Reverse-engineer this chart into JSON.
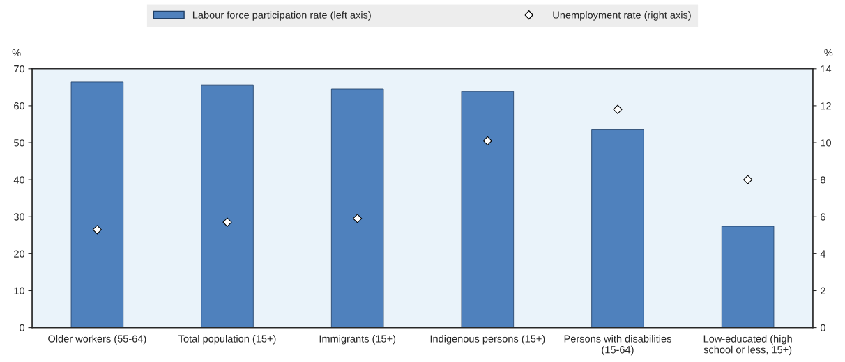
{
  "chart_data": {
    "type": "bar",
    "categories": [
      "Older workers (55-64)",
      "Total population (15+)",
      "Immigrants (15+)",
      "Indigenous persons (15+)",
      "Persons with disabilities\n(15-64)",
      "Low-educated (high\nschool or less, 15+)"
    ],
    "series": [
      {
        "name": "Labour force participation rate (left axis)",
        "color": "#4f81bd",
        "values": [
          66.4,
          65.6,
          64.5,
          63.9,
          53.5,
          27.4
        ]
      },
      {
        "name": "Unemployment rate (right axis)",
        "type": "scatter",
        "axis": "y2",
        "color": "#ffffff",
        "marker": "diamond",
        "values": [
          5.3,
          5.7,
          5.9,
          10.1,
          11.8,
          8.0
        ]
      }
    ],
    "ylabel": "%",
    "y2label": "%",
    "ylim": [
      0,
      70
    ],
    "yticks": [
      0,
      10,
      20,
      30,
      40,
      50,
      60,
      70
    ],
    "y2lim": [
      0,
      14
    ],
    "y2ticks": [
      0,
      2,
      4,
      6,
      8,
      10,
      12,
      14
    ],
    "legend": "top",
    "grid": false
  }
}
